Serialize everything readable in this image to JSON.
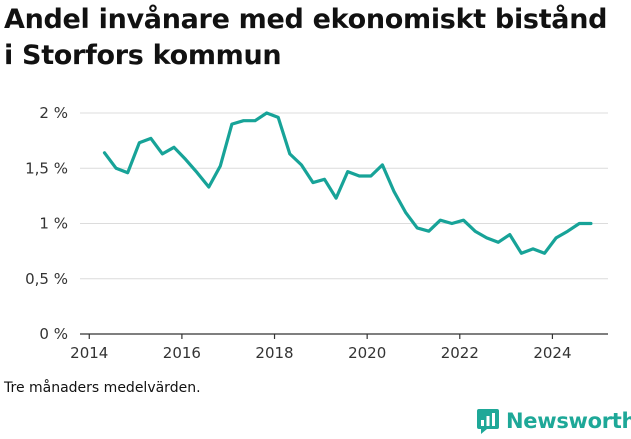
{
  "title": "Andel invånare med ekonomiskt bistånd i Storfors kommun",
  "caption": "Tre månaders medelvärden.",
  "brand": {
    "name": "Newsworthy",
    "icon": "newsworthy-logo-icon",
    "color": "#1ea898"
  },
  "chart_data": {
    "type": "line",
    "title": "Andel invånare med ekonomiskt bistånd i Storfors kommun",
    "xlabel": "",
    "ylabel": "",
    "xlim": [
      2013.8,
      2025.2
    ],
    "ylim": [
      0,
      2
    ],
    "grid": "horizontal",
    "line_color": "#17a398",
    "x_ticks": [
      {
        "value": 2014,
        "label": "2014"
      },
      {
        "value": 2016,
        "label": "2016"
      },
      {
        "value": 2018,
        "label": "2018"
      },
      {
        "value": 2020,
        "label": "2020"
      },
      {
        "value": 2022,
        "label": "2022"
      },
      {
        "value": 2024,
        "label": "2024"
      }
    ],
    "y_ticks": [
      {
        "value": 0,
        "label": "0 %"
      },
      {
        "value": 0.5,
        "label": "0,5 %"
      },
      {
        "value": 1,
        "label": "1 %"
      },
      {
        "value": 1.5,
        "label": "1,5 %"
      },
      {
        "value": 2,
        "label": "2 %"
      }
    ],
    "series": [
      {
        "points": [
          [
            2014.33,
            1.64
          ],
          [
            2014.58,
            1.5
          ],
          [
            2014.83,
            1.46
          ],
          [
            2015.08,
            1.73
          ],
          [
            2015.33,
            1.77
          ],
          [
            2015.58,
            1.63
          ],
          [
            2015.83,
            1.69
          ],
          [
            2016.08,
            1.58
          ],
          [
            2016.33,
            1.46
          ],
          [
            2016.58,
            1.33
          ],
          [
            2016.83,
            1.52
          ],
          [
            2017.08,
            1.9
          ],
          [
            2017.33,
            1.93
          ],
          [
            2017.58,
            1.93
          ],
          [
            2017.83,
            2.0
          ],
          [
            2018.08,
            1.96
          ],
          [
            2018.33,
            1.63
          ],
          [
            2018.58,
            1.53
          ],
          [
            2018.83,
            1.37
          ],
          [
            2019.08,
            1.4
          ],
          [
            2019.33,
            1.23
          ],
          [
            2019.58,
            1.47
          ],
          [
            2019.83,
            1.43
          ],
          [
            2020.08,
            1.43
          ],
          [
            2020.33,
            1.53
          ],
          [
            2020.58,
            1.29
          ],
          [
            2020.83,
            1.1
          ],
          [
            2021.08,
            0.96
          ],
          [
            2021.33,
            0.93
          ],
          [
            2021.58,
            1.03
          ],
          [
            2021.83,
            1.0
          ],
          [
            2022.08,
            1.03
          ],
          [
            2022.33,
            0.93
          ],
          [
            2022.58,
            0.87
          ],
          [
            2022.83,
            0.83
          ],
          [
            2023.08,
            0.9
          ],
          [
            2023.33,
            0.73
          ],
          [
            2023.58,
            0.77
          ],
          [
            2023.83,
            0.73
          ],
          [
            2024.08,
            0.87
          ],
          [
            2024.33,
            0.93
          ],
          [
            2024.58,
            1.0
          ],
          [
            2024.83,
            1.0
          ]
        ]
      }
    ]
  }
}
